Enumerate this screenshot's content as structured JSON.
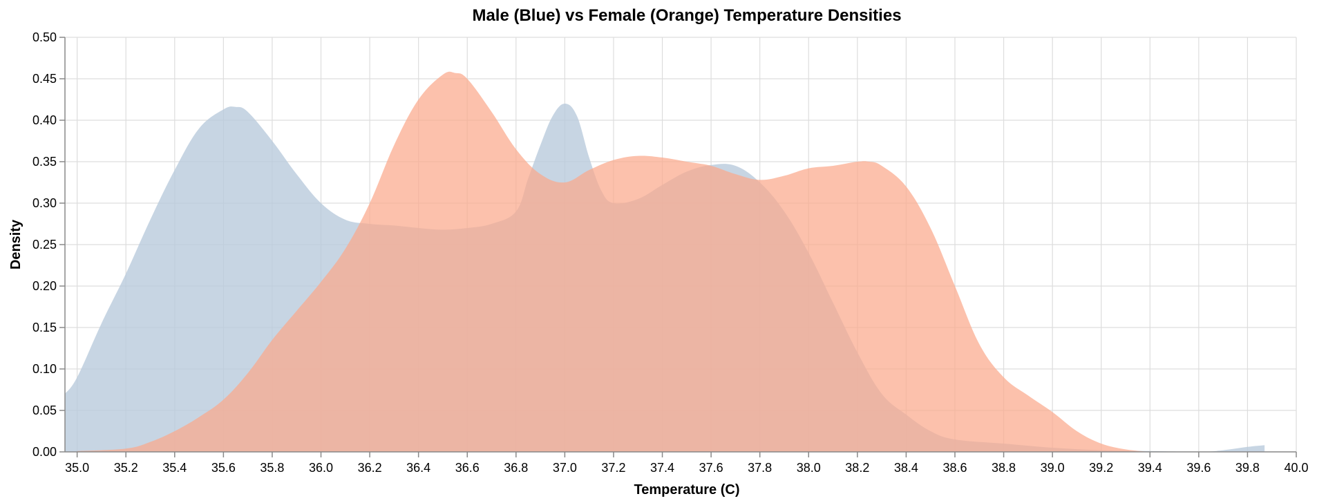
{
  "chart_data": {
    "type": "area",
    "title": "Male (Blue) vs Female (Orange) Temperature Densities",
    "xlabel": "Temperature (C)",
    "ylabel": "Density",
    "xlim": [
      34.95,
      40.0
    ],
    "ylim": [
      0,
      0.5
    ],
    "x_ticks": [
      "35.0",
      "35.2",
      "35.4",
      "35.6",
      "35.8",
      "36.0",
      "36.2",
      "36.4",
      "36.6",
      "36.8",
      "37.0",
      "37.2",
      "37.4",
      "37.6",
      "37.8",
      "38.0",
      "38.2",
      "38.4",
      "38.6",
      "38.8",
      "39.0",
      "39.2",
      "39.4",
      "39.6",
      "39.8",
      "40.0"
    ],
    "y_ticks": [
      "0.00",
      "0.05",
      "0.10",
      "0.15",
      "0.20",
      "0.25",
      "0.30",
      "0.35",
      "0.40",
      "0.45",
      "0.50"
    ],
    "grid": true,
    "legend": "none",
    "series": [
      {
        "color": "#b9cbdc",
        "opacity": 0.8,
        "x": [
          34.95,
          35.0,
          35.1,
          35.2,
          35.3,
          35.4,
          35.5,
          35.6,
          35.65,
          35.7,
          35.8,
          35.9,
          36.0,
          36.1,
          36.2,
          36.3,
          36.4,
          36.5,
          36.6,
          36.7,
          36.8,
          36.85,
          36.9,
          36.95,
          37.0,
          37.05,
          37.1,
          37.15,
          37.2,
          37.3,
          37.4,
          37.5,
          37.6,
          37.7,
          37.8,
          37.9,
          38.0,
          38.1,
          38.2,
          38.3,
          38.4,
          38.5,
          38.6,
          38.8,
          39.0,
          39.2,
          39.4,
          39.6,
          39.7,
          39.8,
          39.87
        ],
        "values": [
          0.07,
          0.09,
          0.155,
          0.215,
          0.28,
          0.34,
          0.39,
          0.413,
          0.416,
          0.41,
          0.375,
          0.335,
          0.3,
          0.28,
          0.275,
          0.273,
          0.27,
          0.268,
          0.27,
          0.275,
          0.29,
          0.33,
          0.37,
          0.405,
          0.42,
          0.405,
          0.355,
          0.315,
          0.3,
          0.305,
          0.322,
          0.338,
          0.346,
          0.345,
          0.325,
          0.29,
          0.24,
          0.18,
          0.12,
          0.07,
          0.045,
          0.025,
          0.015,
          0.01,
          0.005,
          0.002,
          0.001,
          0.0,
          0.002,
          0.006,
          0.008
        ]
      },
      {
        "color": "#fba98c",
        "opacity": 0.72,
        "x": [
          35.0,
          35.2,
          35.3,
          35.4,
          35.5,
          35.6,
          35.7,
          35.8,
          35.9,
          36.0,
          36.1,
          36.2,
          36.3,
          36.4,
          36.5,
          36.55,
          36.6,
          36.7,
          36.8,
          36.9,
          37.0,
          37.1,
          37.2,
          37.3,
          37.4,
          37.5,
          37.6,
          37.7,
          37.8,
          37.9,
          38.0,
          38.1,
          38.2,
          38.25,
          38.3,
          38.4,
          38.5,
          38.6,
          38.7,
          38.8,
          38.9,
          39.0,
          39.1,
          39.2,
          39.3,
          39.4
        ],
        "values": [
          0.001,
          0.004,
          0.012,
          0.025,
          0.042,
          0.063,
          0.095,
          0.135,
          0.17,
          0.205,
          0.245,
          0.3,
          0.37,
          0.425,
          0.455,
          0.457,
          0.45,
          0.41,
          0.365,
          0.335,
          0.325,
          0.34,
          0.352,
          0.357,
          0.355,
          0.35,
          0.345,
          0.335,
          0.328,
          0.333,
          0.342,
          0.345,
          0.35,
          0.35,
          0.345,
          0.32,
          0.27,
          0.2,
          0.13,
          0.09,
          0.068,
          0.048,
          0.025,
          0.01,
          0.003,
          0.0
        ]
      }
    ]
  }
}
